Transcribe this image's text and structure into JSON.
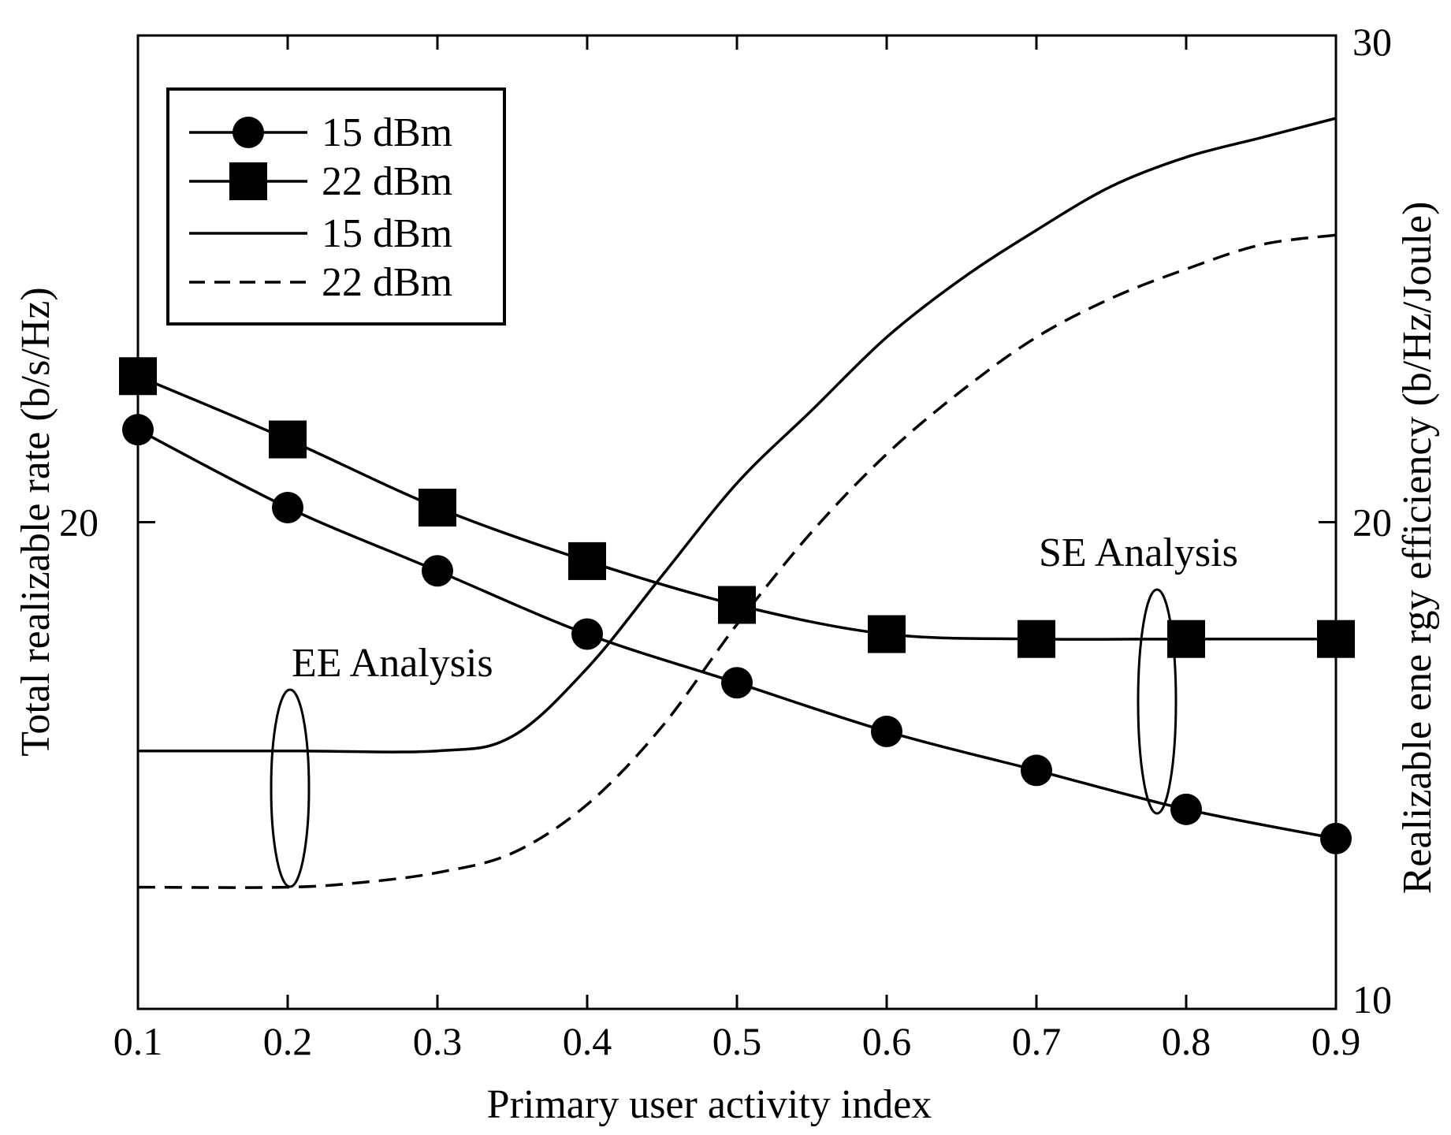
{
  "chart_data": {
    "type": "line",
    "title": "",
    "xlabel": "Primary user activity index",
    "ylabel": "Total realizable rate (b/s/Hz)",
    "y2label": "Realizable ene rgy efficiency (b/Hz/Joule)",
    "xlim": [
      0.1,
      0.9
    ],
    "ylim": [
      10,
      30
    ],
    "y2lim": [
      10,
      30
    ],
    "x_ticks": [
      "0.1",
      "0.2",
      "0.3",
      "0.4",
      "0.5",
      "0.6",
      "0.7",
      "0.8",
      "0.9"
    ],
    "y_ticks": [
      {
        "value": 20,
        "label": "20"
      }
    ],
    "y2_ticks": [
      {
        "value": 10,
        "label": "10"
      },
      {
        "value": 20,
        "label": "20"
      },
      {
        "value": 30,
        "label": "30"
      }
    ],
    "grid": false,
    "legend_position": "top-left",
    "series": [
      {
        "name": "15 dBm",
        "axis": "left",
        "marker": "circle",
        "style": "solid",
        "x": [
          0.1,
          0.2,
          0.3,
          0.4,
          0.5,
          0.6,
          0.7,
          0.8,
          0.9
        ],
        "values": [
          21.9,
          20.3,
          19.0,
          17.7,
          16.7,
          15.7,
          14.9,
          14.1,
          13.5
        ]
      },
      {
        "name": "22 dBm",
        "axis": "left",
        "marker": "square",
        "style": "solid",
        "x": [
          0.1,
          0.2,
          0.3,
          0.4,
          0.5,
          0.6,
          0.7,
          0.8,
          0.9
        ],
        "values": [
          23.0,
          21.7,
          20.3,
          19.2,
          18.3,
          17.7,
          17.6,
          17.6,
          17.6
        ]
      },
      {
        "name": "15 dBm",
        "axis": "right",
        "marker": "none",
        "style": "solid",
        "x": [
          0.1,
          0.2,
          0.3,
          0.35,
          0.4,
          0.45,
          0.5,
          0.55,
          0.6,
          0.65,
          0.7,
          0.75,
          0.8,
          0.85,
          0.9
        ],
        "values": [
          15.3,
          15.3,
          15.3,
          15.6,
          17.0,
          18.9,
          20.8,
          22.3,
          23.8,
          25.0,
          26.0,
          26.9,
          27.5,
          27.9,
          28.3
        ]
      },
      {
        "name": "22 dBm",
        "axis": "right",
        "marker": "none",
        "style": "dashed",
        "x": [
          0.1,
          0.2,
          0.25,
          0.3,
          0.35,
          0.4,
          0.45,
          0.5,
          0.55,
          0.6,
          0.65,
          0.7,
          0.75,
          0.8,
          0.85,
          0.9
        ],
        "values": [
          12.5,
          12.5,
          12.6,
          12.8,
          13.2,
          14.2,
          15.8,
          17.9,
          19.8,
          21.4,
          22.7,
          23.8,
          24.6,
          25.2,
          25.7,
          25.9
        ]
      }
    ],
    "annotations": [
      {
        "text": "EE Analysis",
        "x": 0.28,
        "y": 17.0
      },
      {
        "text": "SE Analysis",
        "x": 0.79,
        "y": 19.0
      }
    ]
  }
}
